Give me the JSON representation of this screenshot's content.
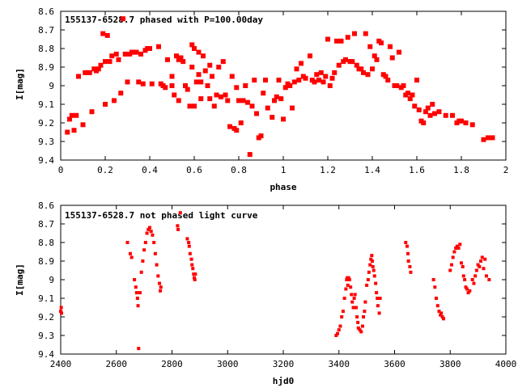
{
  "chart_data": [
    {
      "type": "scatter",
      "title": "155137-6528.7 phased with P=100.00day",
      "xlabel": "phase",
      "ylabel": "I[mag]",
      "xlim": [
        0,
        2
      ],
      "ylim": [
        9.4,
        8.6
      ],
      "y_inverted": true,
      "marker_color": "#ff0000",
      "x_ticks": [
        "0",
        "0.2",
        "0.4",
        "0.6",
        "0.8",
        "1",
        "1.2",
        "1.4",
        "1.6",
        "1.8",
        "2"
      ],
      "y_ticks": [
        "8.6",
        "8.7",
        "8.8",
        "8.9",
        "9",
        "9.1",
        "9.2",
        "9.3",
        "9.4"
      ],
      "points": [
        [
          0.03,
          9.25
        ],
        [
          0.04,
          9.18
        ],
        [
          0.05,
          9.16
        ],
        [
          0.06,
          9.24
        ],
        [
          0.07,
          9.16
        ],
        [
          0.08,
          8.95
        ],
        [
          0.1,
          9.21
        ],
        [
          0.11,
          8.93
        ],
        [
          0.12,
          8.93
        ],
        [
          0.13,
          8.93
        ],
        [
          0.14,
          9.14
        ],
        [
          0.15,
          8.91
        ],
        [
          0.16,
          8.92
        ],
        [
          0.17,
          8.91
        ],
        [
          0.18,
          8.89
        ],
        [
          0.19,
          8.72
        ],
        [
          0.2,
          8.87
        ],
        [
          0.2,
          9.1
        ],
        [
          0.21,
          8.73
        ],
        [
          0.22,
          8.87
        ],
        [
          0.23,
          8.84
        ],
        [
          0.24,
          9.08
        ],
        [
          0.25,
          8.83
        ],
        [
          0.26,
          8.86
        ],
        [
          0.27,
          9.04
        ],
        [
          0.28,
          8.64
        ],
        [
          0.29,
          8.83
        ],
        [
          0.3,
          8.98
        ],
        [
          0.31,
          8.83
        ],
        [
          0.32,
          8.82
        ],
        [
          0.33,
          8.82
        ],
        [
          0.34,
          8.82
        ],
        [
          0.35,
          8.98
        ],
        [
          0.36,
          8.83
        ],
        [
          0.37,
          8.99
        ],
        [
          0.38,
          8.81
        ],
        [
          0.39,
          8.8
        ],
        [
          0.4,
          8.8
        ],
        [
          0.41,
          8.99
        ],
        [
          0.44,
          8.79
        ],
        [
          0.45,
          8.99
        ],
        [
          0.46,
          9.0
        ],
        [
          0.47,
          9.01
        ],
        [
          0.48,
          8.86
        ],
        [
          0.5,
          8.95
        ],
        [
          0.5,
          9.0
        ],
        [
          0.51,
          9.05
        ],
        [
          0.52,
          8.84
        ],
        [
          0.53,
          8.86
        ],
        [
          0.53,
          9.08
        ],
        [
          0.54,
          8.85
        ],
        [
          0.55,
          8.87
        ],
        [
          0.56,
          9.0
        ],
        [
          0.57,
          9.02
        ],
        [
          0.58,
          9.11
        ],
        [
          0.59,
          8.78
        ],
        [
          0.59,
          8.9
        ],
        [
          0.6,
          9.11
        ],
        [
          0.6,
          8.8
        ],
        [
          0.61,
          8.98
        ],
        [
          0.62,
          8.82
        ],
        [
          0.62,
          8.94
        ],
        [
          0.63,
          8.98
        ],
        [
          0.63,
          9.07
        ],
        [
          0.64,
          8.84
        ],
        [
          0.65,
          8.92
        ],
        [
          0.66,
          9.0
        ],
        [
          0.67,
          8.89
        ],
        [
          0.67,
          9.07
        ],
        [
          0.68,
          8.95
        ],
        [
          0.69,
          9.11
        ],
        [
          0.7,
          9.05
        ],
        [
          0.71,
          8.9
        ],
        [
          0.72,
          9.06
        ],
        [
          0.73,
          8.87
        ],
        [
          0.74,
          9.05
        ],
        [
          0.75,
          9.08
        ],
        [
          0.76,
          9.22
        ],
        [
          0.77,
          8.95
        ],
        [
          0.78,
          9.23
        ],
        [
          0.79,
          9.01
        ],
        [
          0.79,
          9.24
        ],
        [
          0.8,
          9.08
        ],
        [
          0.81,
          9.2
        ],
        [
          0.82,
          9.08
        ],
        [
          0.83,
          9.0
        ],
        [
          0.84,
          9.09
        ],
        [
          0.85,
          9.37
        ],
        [
          0.86,
          9.11
        ],
        [
          0.87,
          8.97
        ],
        [
          0.88,
          9.15
        ],
        [
          0.89,
          9.28
        ],
        [
          0.9,
          9.27
        ],
        [
          0.91,
          9.04
        ],
        [
          0.92,
          8.97
        ],
        [
          0.93,
          9.12
        ],
        [
          0.95,
          9.17
        ],
        [
          0.96,
          9.08
        ],
        [
          0.97,
          9.06
        ],
        [
          0.98,
          8.97
        ],
        [
          0.99,
          9.07
        ],
        [
          1.0,
          9.18
        ],
        [
          1.01,
          9.01
        ],
        [
          1.02,
          8.99
        ],
        [
          1.03,
          9.0
        ],
        [
          1.04,
          9.12
        ],
        [
          1.05,
          8.98
        ],
        [
          1.06,
          8.91
        ],
        [
          1.07,
          8.97
        ],
        [
          1.08,
          8.88
        ],
        [
          1.09,
          8.95
        ],
        [
          1.1,
          8.96
        ],
        [
          1.12,
          8.84
        ],
        [
          1.13,
          8.97
        ],
        [
          1.14,
          8.98
        ],
        [
          1.15,
          8.94
        ],
        [
          1.16,
          8.97
        ],
        [
          1.17,
          8.93
        ],
        [
          1.18,
          8.98
        ],
        [
          1.19,
          8.95
        ],
        [
          1.2,
          8.75
        ],
        [
          1.21,
          9.0
        ],
        [
          1.22,
          8.96
        ],
        [
          1.23,
          8.93
        ],
        [
          1.24,
          8.76
        ],
        [
          1.25,
          8.89
        ],
        [
          1.26,
          8.76
        ],
        [
          1.27,
          8.87
        ],
        [
          1.28,
          8.86
        ],
        [
          1.29,
          8.74
        ],
        [
          1.3,
          8.87
        ],
        [
          1.31,
          8.87
        ],
        [
          1.32,
          8.72
        ],
        [
          1.33,
          8.89
        ],
        [
          1.34,
          8.91
        ],
        [
          1.35,
          8.91
        ],
        [
          1.36,
          8.93
        ],
        [
          1.37,
          8.72
        ],
        [
          1.38,
          8.94
        ],
        [
          1.39,
          8.79
        ],
        [
          1.4,
          8.91
        ],
        [
          1.41,
          8.84
        ],
        [
          1.42,
          8.86
        ],
        [
          1.43,
          8.76
        ],
        [
          1.44,
          8.77
        ],
        [
          1.45,
          8.94
        ],
        [
          1.46,
          8.95
        ],
        [
          1.47,
          8.97
        ],
        [
          1.48,
          8.79
        ],
        [
          1.49,
          8.85
        ],
        [
          1.5,
          9.0
        ],
        [
          1.51,
          9.0
        ],
        [
          1.52,
          8.82
        ],
        [
          1.53,
          9.01
        ],
        [
          1.54,
          9.0
        ],
        [
          1.55,
          9.05
        ],
        [
          1.56,
          9.04
        ],
        [
          1.57,
          9.07
        ],
        [
          1.58,
          9.05
        ],
        [
          1.59,
          9.11
        ],
        [
          1.6,
          8.97
        ],
        [
          1.61,
          9.13
        ],
        [
          1.62,
          9.19
        ],
        [
          1.63,
          9.2
        ],
        [
          1.64,
          9.14
        ],
        [
          1.65,
          9.12
        ],
        [
          1.66,
          9.16
        ],
        [
          1.67,
          9.1
        ],
        [
          1.68,
          9.15
        ],
        [
          1.7,
          9.14
        ],
        [
          1.73,
          9.16
        ],
        [
          1.76,
          9.16
        ],
        [
          1.78,
          9.2
        ],
        [
          1.79,
          9.19
        ],
        [
          1.8,
          9.19
        ],
        [
          1.82,
          9.2
        ],
        [
          1.85,
          9.21
        ],
        [
          1.9,
          9.29
        ],
        [
          1.92,
          9.28
        ],
        [
          1.94,
          9.28
        ]
      ]
    },
    {
      "type": "scatter",
      "title": "155137-6528.7 not phased light curve",
      "xlabel": "hjd0",
      "ylabel": "I[mag]",
      "xlim": [
        2400,
        4000
      ],
      "ylim": [
        9.4,
        8.6
      ],
      "y_inverted": true,
      "marker_color": "#ff0000",
      "x_ticks": [
        "2400",
        "2600",
        "2800",
        "3000",
        "3200",
        "3400",
        "3600",
        "3800",
        "4000"
      ],
      "y_ticks": [
        "8.6",
        "8.7",
        "8.8",
        "8.9",
        "9",
        "9.1",
        "9.2",
        "9.3",
        "9.4"
      ],
      "points": [
        [
          2400,
          9.17
        ],
        [
          2402,
          9.15
        ],
        [
          2403,
          9.18
        ],
        [
          2640,
          8.8
        ],
        [
          2650,
          8.86
        ],
        [
          2655,
          8.88
        ],
        [
          2665,
          9.0
        ],
        [
          2670,
          9.04
        ],
        [
          2673,
          9.07
        ],
        [
          2676,
          9.1
        ],
        [
          2678,
          9.14
        ],
        [
          2680,
          9.37
        ],
        [
          2685,
          9.07
        ],
        [
          2690,
          8.96
        ],
        [
          2695,
          8.9
        ],
        [
          2700,
          8.84
        ],
        [
          2705,
          8.8
        ],
        [
          2710,
          8.75
        ],
        [
          2715,
          8.73
        ],
        [
          2720,
          8.72
        ],
        [
          2725,
          8.74
        ],
        [
          2730,
          8.76
        ],
        [
          2735,
          8.8
        ],
        [
          2740,
          8.86
        ],
        [
          2745,
          8.92
        ],
        [
          2750,
          8.98
        ],
        [
          2755,
          9.02
        ],
        [
          2758,
          9.06
        ],
        [
          2760,
          9.04
        ],
        [
          2820,
          8.71
        ],
        [
          2822,
          8.73
        ],
        [
          2830,
          8.64
        ],
        [
          2855,
          8.78
        ],
        [
          2860,
          8.8
        ],
        [
          2862,
          8.82
        ],
        [
          2865,
          8.86
        ],
        [
          2870,
          8.89
        ],
        [
          2872,
          8.92
        ],
        [
          2875,
          8.94
        ],
        [
          2878,
          8.97
        ],
        [
          2880,
          8.99
        ],
        [
          2882,
          9.0
        ],
        [
          2884,
          8.97
        ],
        [
          3390,
          9.3
        ],
        [
          3395,
          9.29
        ],
        [
          3400,
          9.27
        ],
        [
          3405,
          9.25
        ],
        [
          3410,
          9.2
        ],
        [
          3415,
          9.17
        ],
        [
          3420,
          9.1
        ],
        [
          3425,
          9.05
        ],
        [
          3428,
          9.0
        ],
        [
          3430,
          8.99
        ],
        [
          3432,
          9.03
        ],
        [
          3435,
          8.99
        ],
        [
          3438,
          9.0
        ],
        [
          3442,
          9.04
        ],
        [
          3445,
          9.08
        ],
        [
          3448,
          9.12
        ],
        [
          3452,
          9.15
        ],
        [
          3455,
          9.1
        ],
        [
          3458,
          9.08
        ],
        [
          3462,
          9.15
        ],
        [
          3465,
          9.2
        ],
        [
          3468,
          9.23
        ],
        [
          3470,
          9.26
        ],
        [
          3475,
          9.27
        ],
        [
          3480,
          9.28
        ],
        [
          3485,
          9.25
        ],
        [
          3488,
          9.2
        ],
        [
          3492,
          9.17
        ],
        [
          3495,
          9.12
        ],
        [
          3500,
          9.03
        ],
        [
          3505,
          9.0
        ],
        [
          3508,
          8.96
        ],
        [
          3512,
          8.92
        ],
        [
          3515,
          8.89
        ],
        [
          3518,
          8.87
        ],
        [
          3520,
          8.9
        ],
        [
          3522,
          8.93
        ],
        [
          3525,
          8.95
        ],
        [
          3528,
          8.98
        ],
        [
          3532,
          9.02
        ],
        [
          3535,
          9.07
        ],
        [
          3538,
          9.1
        ],
        [
          3540,
          9.14
        ],
        [
          3545,
          9.18
        ],
        [
          3548,
          9.1
        ],
        [
          3640,
          8.8
        ],
        [
          3645,
          8.82
        ],
        [
          3648,
          8.86
        ],
        [
          3650,
          8.9
        ],
        [
          3655,
          8.93
        ],
        [
          3658,
          8.96
        ],
        [
          3740,
          9.0
        ],
        [
          3745,
          9.04
        ],
        [
          3750,
          9.1
        ],
        [
          3755,
          9.14
        ],
        [
          3760,
          9.17
        ],
        [
          3765,
          9.19
        ],
        [
          3768,
          9.18
        ],
        [
          3772,
          9.2
        ],
        [
          3776,
          9.21
        ],
        [
          3800,
          8.95
        ],
        [
          3805,
          8.92
        ],
        [
          3810,
          8.88
        ],
        [
          3815,
          8.85
        ],
        [
          3820,
          8.83
        ],
        [
          3825,
          8.82
        ],
        [
          3830,
          8.83
        ],
        [
          3835,
          8.81
        ],
        [
          3840,
          8.91
        ],
        [
          3845,
          8.93
        ],
        [
          3848,
          8.98
        ],
        [
          3852,
          9.0
        ],
        [
          3856,
          9.04
        ],
        [
          3860,
          9.05
        ],
        [
          3865,
          9.07
        ],
        [
          3870,
          9.06
        ],
        [
          3880,
          9.0
        ],
        [
          3885,
          9.02
        ],
        [
          3890,
          8.98
        ],
        [
          3895,
          8.95
        ],
        [
          3900,
          8.92
        ],
        [
          3905,
          8.93
        ],
        [
          3910,
          8.9
        ],
        [
          3915,
          8.88
        ],
        [
          3920,
          8.94
        ],
        [
          3925,
          8.89
        ],
        [
          3930,
          8.98
        ],
        [
          3940,
          9.0
        ]
      ]
    }
  ]
}
